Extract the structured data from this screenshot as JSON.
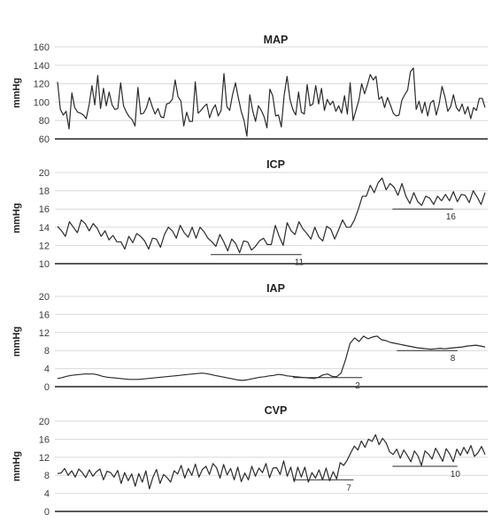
{
  "chart_data": [
    {
      "type": "line",
      "title": "MAP",
      "ylabel": "mmHg",
      "ylim": [
        60,
        160
      ],
      "yticks": [
        60,
        80,
        100,
        120,
        140,
        160
      ],
      "grid": true,
      "series": [
        {
          "values": [
            122,
            92,
            86,
            90,
            71,
            110,
            94,
            89,
            88,
            86,
            82,
            97,
            118,
            97,
            129,
            93,
            115,
            96,
            111,
            97,
            92,
            93,
            121,
            96,
            89,
            84,
            81,
            74,
            116,
            87,
            88,
            94,
            105,
            95,
            87,
            93,
            84,
            83,
            98,
            99,
            103,
            124,
            106,
            101,
            74,
            89,
            79,
            79,
            122,
            88,
            91,
            95,
            98,
            83,
            92,
            97,
            85,
            91,
            131,
            95,
            91,
            108,
            121,
            105,
            90,
            80,
            63,
            108,
            91,
            79,
            96,
            91,
            84,
            72,
            114,
            107,
            85,
            86,
            73,
            108,
            128,
            103,
            92,
            86,
            111,
            89,
            87,
            119,
            96,
            98,
            118,
            98,
            115,
            91,
            103,
            97,
            101,
            90,
            96,
            88,
            107,
            87,
            121,
            80,
            91,
            102,
            120,
            109,
            119,
            130,
            124,
            128,
            103,
            106,
            94,
            105,
            97,
            88,
            85,
            86,
            102,
            108,
            113,
            133,
            137,
            92,
            101,
            88,
            100,
            85,
            99,
            102,
            86,
            98,
            117,
            106,
            90,
            95,
            108,
            94,
            90,
            98,
            87,
            95,
            82,
            94,
            91,
            104,
            104,
            94
          ]
        }
      ],
      "annotations": []
    },
    {
      "type": "line",
      "title": "ICP",
      "ylabel": "mmHg",
      "ylim": [
        10,
        20
      ],
      "yticks": [
        10,
        12,
        14,
        16,
        18,
        20
      ],
      "grid": true,
      "series": [
        {
          "values": [
            14.1,
            13.6,
            13.0,
            14.6,
            14.0,
            13.4,
            14.8,
            14.4,
            13.6,
            14.4,
            13.9,
            13.0,
            13.6,
            12.6,
            13.1,
            12.4,
            12.4,
            11.6,
            13.0,
            12.3,
            13.3,
            13.0,
            12.5,
            11.6,
            12.8,
            12.7,
            11.8,
            13.2,
            14.0,
            13.6,
            12.8,
            14.2,
            13.4,
            12.9,
            14.0,
            12.8,
            14.0,
            13.5,
            12.8,
            12.4,
            11.9,
            13.2,
            12.4,
            11.4,
            12.7,
            12.2,
            11.2,
            12.5,
            12.4,
            11.5,
            11.9,
            12.5,
            12.8,
            12.1,
            12.1,
            14.2,
            13.0,
            12.0,
            14.5,
            13.6,
            13.2,
            14.6,
            13.8,
            13.3,
            12.7,
            14.0,
            12.9,
            12.5,
            14.1,
            13.8,
            12.7,
            13.7,
            14.8,
            14.0,
            14.0,
            14.8,
            16.0,
            17.4,
            17.4,
            18.6,
            17.8,
            18.9,
            19.4,
            18.1,
            18.8,
            18.4,
            17.5,
            18.8,
            17.4,
            16.6,
            17.8,
            16.8,
            16.4,
            17.4,
            17.2,
            16.5,
            17.4,
            16.9,
            17.6,
            16.9,
            17.9,
            16.8,
            17.6,
            17.5,
            16.7,
            18.0,
            17.3,
            16.5,
            17.8
          ]
        }
      ],
      "annotations": [
        {
          "label": "11",
          "value": 11
        },
        {
          "label": "16",
          "value": 16
        }
      ]
    },
    {
      "type": "line",
      "title": "IAP",
      "ylabel": "mmHg",
      "ylim": [
        0,
        20
      ],
      "yticks": [
        0,
        4,
        8,
        12,
        16,
        20
      ],
      "grid": true,
      "series": [
        {
          "values": [
            1.8,
            2.0,
            2.3,
            2.5,
            2.6,
            2.7,
            2.8,
            2.8,
            2.8,
            2.6,
            2.3,
            2.1,
            2.0,
            1.9,
            1.8,
            1.7,
            1.6,
            1.6,
            1.6,
            1.7,
            1.8,
            1.9,
            2.0,
            2.1,
            2.2,
            2.3,
            2.4,
            2.5,
            2.6,
            2.7,
            2.8,
            2.9,
            3.0,
            2.9,
            2.7,
            2.5,
            2.3,
            2.1,
            1.9,
            1.7,
            1.5,
            1.4,
            1.5,
            1.7,
            1.9,
            2.1,
            2.2,
            2.4,
            2.5,
            2.7,
            2.6,
            2.4,
            2.3,
            2.2,
            2.1,
            2.0,
            1.9,
            1.8,
            2.1,
            2.6,
            2.8,
            2.3,
            2.2,
            3.0,
            6.0,
            9.6,
            10.8,
            10.0,
            11.2,
            10.6,
            11.0,
            11.2,
            10.4,
            10.2,
            9.8,
            9.6,
            9.4,
            9.2,
            9.0,
            8.8,
            8.6,
            8.5,
            8.4,
            8.3,
            8.4,
            8.5,
            8.4,
            8.5,
            8.6,
            8.7,
            8.8,
            9.0,
            9.1,
            9.2,
            9.0,
            8.8
          ]
        }
      ],
      "annotations": [
        {
          "label": "2",
          "value": 2
        },
        {
          "label": "8",
          "value": 8
        }
      ]
    },
    {
      "type": "line",
      "title": "CVP",
      "ylabel": "mmHg",
      "ylim": [
        0,
        20
      ],
      "yticks": [
        0,
        4,
        8,
        12,
        16,
        20
      ],
      "grid": true,
      "series": [
        {
          "values": [
            8.4,
            8.5,
            9.5,
            8.0,
            9.0,
            7.6,
            9.4,
            8.6,
            7.5,
            9.2,
            7.8,
            8.8,
            9.4,
            7.0,
            8.9,
            8.6,
            7.6,
            9.1,
            6.2,
            8.6,
            6.8,
            8.3,
            5.6,
            8.4,
            6.5,
            9.0,
            5.0,
            7.6,
            9.3,
            6.2,
            8.2,
            7.5,
            6.5,
            9.0,
            8.3,
            10.2,
            7.4,
            9.5,
            8.0,
            10.5,
            7.6,
            9.3,
            10.0,
            8.2,
            10.6,
            9.7,
            7.4,
            10.4,
            8.1,
            9.5,
            7.0,
            9.8,
            6.6,
            8.5,
            7.0,
            10.0,
            7.8,
            9.6,
            8.6,
            10.6,
            7.5,
            9.6,
            9.7,
            8.2,
            11.2,
            7.8,
            9.8,
            6.6,
            9.8,
            7.6,
            9.8,
            6.5,
            8.6,
            7.4,
            9.2,
            7.0,
            9.6,
            6.8,
            8.8,
            7.2,
            10.8,
            10.2,
            11.4,
            13.0,
            14.5,
            13.6,
            15.6,
            14.2,
            16.0,
            15.5,
            17.0,
            14.8,
            16.2,
            15.2,
            13.2,
            12.6,
            13.8,
            11.8,
            13.6,
            12.4,
            11.0,
            13.4,
            12.3,
            10.2,
            13.4,
            12.7,
            11.6,
            14.0,
            12.6,
            11.1,
            13.9,
            12.7,
            11.0,
            13.8,
            12.4,
            14.2,
            12.8,
            14.6,
            12.2,
            13.0,
            14.4,
            12.6
          ]
        }
      ],
      "annotations": [
        {
          "label": "7",
          "value": 7
        },
        {
          "label": "10",
          "value": 10
        }
      ]
    }
  ]
}
